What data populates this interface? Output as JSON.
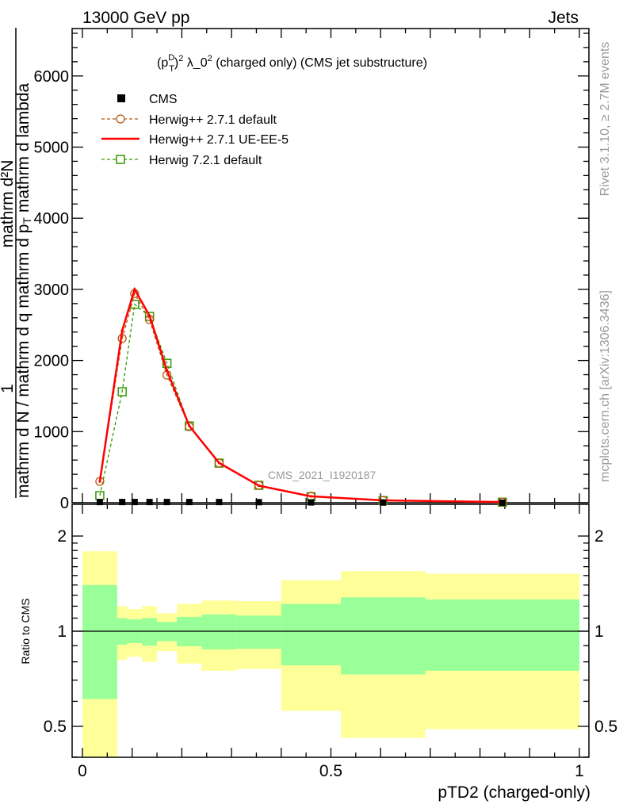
{
  "header": {
    "energy": "13000 GeV pp",
    "process": "Jets"
  },
  "side_notes": {
    "rivet": "Rivet 3.1.10, ≥ 2.7M events",
    "mcplots": "mcplots.cern.ch [arXiv:1306.3436]"
  },
  "watermark": "CMS_2021_I1920187",
  "colors": {
    "cms": "#000000",
    "herwigpp_default": "#b8560e",
    "herwigpp_ueee5": "#ff0000",
    "herwig7": "#339900",
    "band_total": "#ffff99",
    "band_stat": "#99ff99"
  },
  "chart_data": [
    {
      "type": "line",
      "title": {
        "p": "(p",
        "sub": "T",
        "sup": "D",
        "close": ")",
        "sq": "2",
        "lam": " λ_0",
        "sq2": "2",
        "rest": " (charged only) (CMS jet substructure)"
      },
      "ylabel": {
        "one": "1",
        "numer": "mathrm d²N",
        "denom_a": "mathrm d N / mathrm d q mathrm d p",
        "denom_sub": "T",
        "denom_b": " mathrm d lambda"
      },
      "xlim": [
        0,
        1
      ],
      "ylim": [
        0,
        6650
      ],
      "yticks": [
        "0",
        "1000",
        "2000",
        "3000",
        "4000",
        "5000",
        "6000"
      ],
      "x": [
        0.035,
        0.08,
        0.105,
        0.135,
        0.17,
        0.215,
        0.275,
        0.355,
        0.46,
        0.605,
        0.845
      ],
      "series": [
        {
          "name": "CMS",
          "style": "marker-square",
          "values": [
            10,
            10,
            10,
            10,
            10,
            10,
            10,
            8,
            5,
            3,
            1
          ]
        },
        {
          "name": "Herwig++ 2.7.1 default",
          "style": "dashed-circle",
          "values": [
            300,
            2310,
            2940,
            2575,
            1795,
            1070,
            557,
            245,
            90,
            33,
            10
          ]
        },
        {
          "name": "Herwig++ 2.7.1 UE-EE-5",
          "style": "solid",
          "values": [
            300,
            2420,
            3000,
            2630,
            1860,
            1080,
            560,
            240,
            90,
            33,
            10
          ]
        },
        {
          "name": "Herwig 7.2.1 default",
          "style": "dashed-square",
          "values": [
            100,
            1560,
            2790,
            2620,
            1960,
            1080,
            557,
            245,
            85,
            30,
            8
          ]
        }
      ]
    },
    {
      "type": "area",
      "ylabel": "Ratio to CMS",
      "xlabel": "pTD2 (charged-only)",
      "xticks": [
        "0",
        "0.5",
        "1"
      ],
      "yticks": [
        "0.5",
        "1",
        "2"
      ],
      "yscale": "log",
      "ylim": [
        0.4,
        2.5
      ],
      "bin_edges": [
        0,
        0.07,
        0.09,
        0.12,
        0.15,
        0.19,
        0.24,
        0.31,
        0.4,
        0.52,
        0.69,
        1.0
      ],
      "stat_band": {
        "up": [
          1.4,
          1.1,
          1.09,
          1.1,
          1.07,
          1.11,
          1.13,
          1.12,
          1.22,
          1.28,
          1.26
        ],
        "down": [
          0.61,
          0.906,
          0.917,
          0.9,
          0.93,
          0.896,
          0.876,
          0.88,
          0.78,
          0.73,
          0.75
        ]
      },
      "total_band": {
        "up": [
          1.79,
          1.2,
          1.175,
          1.2,
          1.14,
          1.22,
          1.25,
          1.245,
          1.45,
          1.55,
          1.52
        ],
        "down": [
          0.35,
          0.81,
          0.83,
          0.8,
          0.865,
          0.79,
          0.75,
          0.76,
          0.56,
          0.46,
          0.49
        ]
      }
    }
  ]
}
